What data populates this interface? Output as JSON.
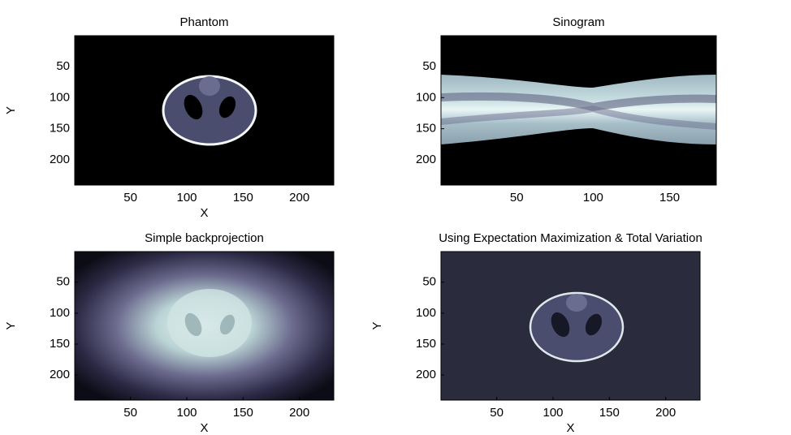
{
  "chart_data": [
    {
      "type": "image",
      "title": "Phantom",
      "xlabel": "X",
      "ylabel": "Y",
      "xlim": [
        0.5,
        230.5
      ],
      "ylim": [
        0.5,
        240.5
      ],
      "xticks": [
        50,
        100,
        150,
        200
      ],
      "yticks": [
        50,
        100,
        150,
        200
      ]
    },
    {
      "type": "image",
      "title": "Sinogram",
      "xlim": [
        0.5,
        180.5
      ],
      "ylim": [
        0.5,
        240.5
      ],
      "xticks": [
        50,
        100,
        150
      ],
      "yticks": [
        50,
        100,
        150,
        200
      ]
    },
    {
      "type": "image",
      "title": "Simple backprojection",
      "xlabel": "X",
      "ylabel": "Y",
      "xlim": [
        0.5,
        230.5
      ],
      "ylim": [
        0.5,
        240.5
      ],
      "xticks": [
        50,
        100,
        150,
        200
      ],
      "yticks": [
        50,
        100,
        150,
        200
      ]
    },
    {
      "type": "image",
      "title": "Using Expectation Maximization & Total Variation",
      "xlabel": "X",
      "ylabel": "Y",
      "xlim": [
        0.5,
        230.5
      ],
      "ylim": [
        0.5,
        240.5
      ],
      "xticks": [
        50,
        100,
        150,
        200
      ],
      "yticks": [
        50,
        100,
        150,
        200
      ]
    }
  ]
}
